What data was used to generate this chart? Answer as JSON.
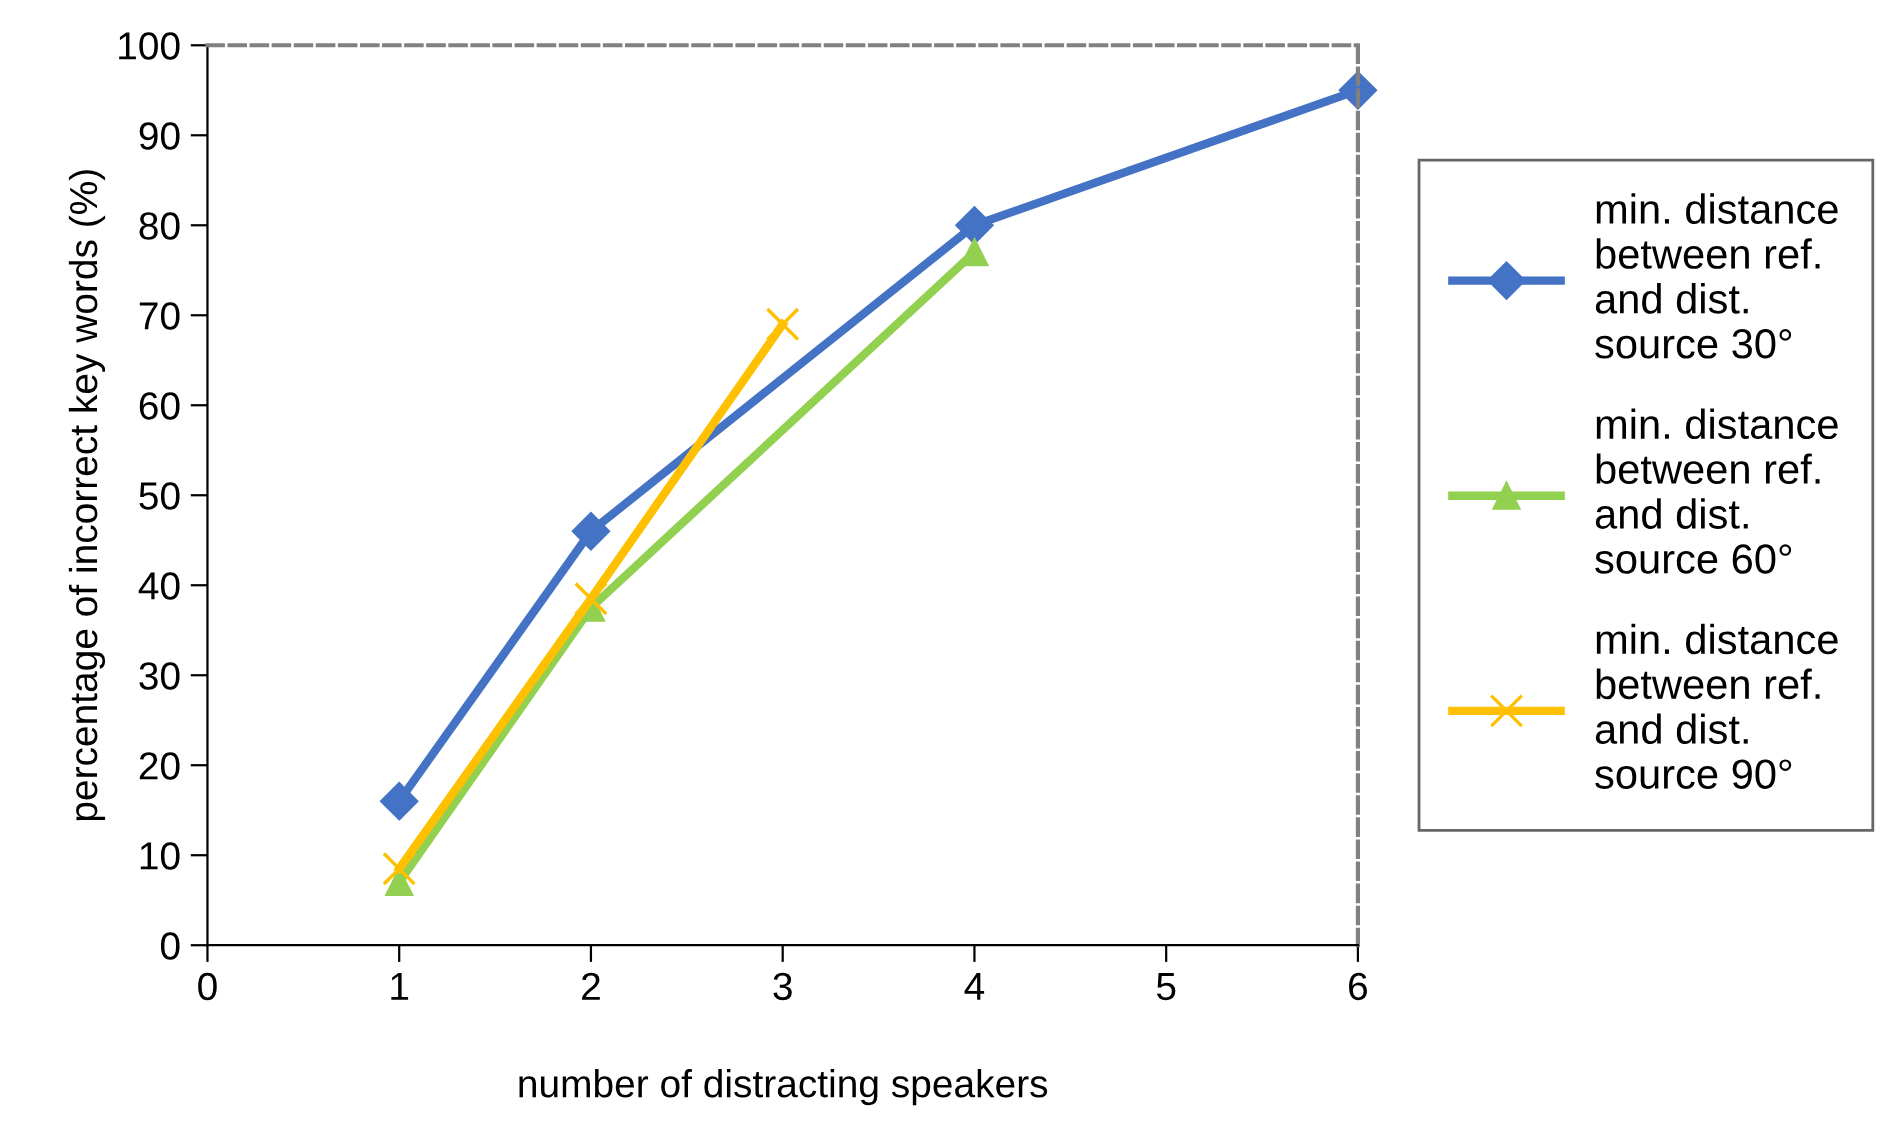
{
  "chart_data": {
    "type": "line",
    "xlabel": "number of distracting speakers",
    "ylabel": "percentage of incorrect key words (%)",
    "xlim": [
      0,
      6
    ],
    "xticks": [
      0,
      1,
      2,
      3,
      4,
      5,
      6
    ],
    "ylim": [
      0,
      100
    ],
    "yticks": [
      0,
      10,
      20,
      30,
      40,
      50,
      60,
      70,
      80,
      90,
      100
    ],
    "grid": false,
    "legend": "right",
    "line_style": "solid",
    "series": [
      {
        "name": "min. distance\nbetween ref.\nand dist.\nsource 30°",
        "color": "#4472c4",
        "marker": "diamond",
        "x": [
          1,
          2,
          4,
          6
        ],
        "values": [
          16,
          46,
          80,
          95
        ]
      },
      {
        "name": "min. distance\nbetween ref.\nand dist.\nsource 60°",
        "color": "#92d050",
        "marker": "triangle",
        "x": [
          1,
          2,
          4
        ],
        "values": [
          7,
          37.5,
          77
        ]
      },
      {
        "name": "min. distance\nbetween ref.\nand dist.\nsource 90°",
        "color": "#ffc000",
        "marker": "cross",
        "x": [
          1,
          2,
          3
        ],
        "values": [
          8.5,
          38.5,
          69
        ]
      }
    ]
  }
}
